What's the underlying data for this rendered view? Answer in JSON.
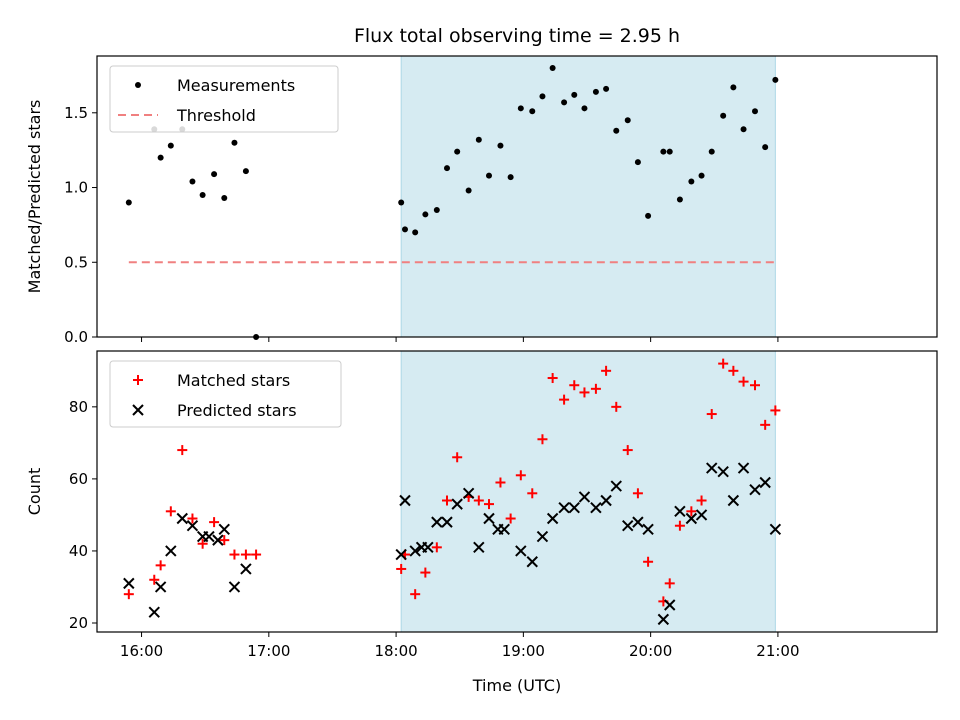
{
  "chart_data": {
    "title": "Flux total observing time = 2.95 h",
    "xlabel": "Time (UTC)",
    "x_ticks": [
      "16:00",
      "17:00",
      "18:00",
      "19:00",
      "20:00",
      "21:00"
    ],
    "x_tick_hours": [
      16,
      17,
      18,
      19,
      20,
      21
    ],
    "xlim": [
      15.65,
      22.25
    ],
    "highlight_span": [
      18.04,
      20.98
    ],
    "colors": {
      "matched": "#ff0000",
      "predicted": "#000000",
      "threshold": "#f08080",
      "span": "#add8e6"
    },
    "panels": [
      {
        "type": "scatter",
        "ylabel": "Matched/Predicted stars",
        "ylim": [
          0,
          1.88
        ],
        "y_ticks": [
          "0.0",
          "0.5",
          "1.0",
          "1.5"
        ],
        "legend_placement": "upper-left",
        "series": [
          {
            "name": "Measurements",
            "x": [
              15.9,
              16.1,
              16.15,
              16.23,
              16.32,
              16.4,
              16.48,
              16.57,
              16.65,
              16.73,
              16.82,
              16.9,
              18.04,
              18.07,
              18.15,
              18.23,
              18.32,
              18.4,
              18.48,
              18.57,
              18.65,
              18.73,
              18.82,
              18.9,
              18.98,
              19.07,
              19.15,
              19.23,
              19.32,
              19.4,
              19.48,
              19.57,
              19.65,
              19.73,
              19.82,
              19.9,
              19.98,
              20.1,
              20.15,
              20.23,
              20.32,
              20.4,
              20.48,
              20.57,
              20.65,
              20.73,
              20.82,
              20.9,
              20.98
            ],
            "y": [
              0.9,
              1.39,
              1.2,
              1.28,
              1.39,
              1.04,
              0.95,
              1.09,
              0.93,
              1.3,
              1.11,
              0.0,
              0.9,
              0.72,
              0.7,
              0.82,
              0.85,
              1.13,
              1.24,
              0.98,
              1.32,
              1.08,
              1.28,
              1.07,
              1.53,
              1.51,
              1.61,
              1.8,
              1.57,
              1.62,
              1.53,
              1.64,
              1.66,
              1.38,
              1.45,
              1.17,
              0.81,
              1.24,
              1.24,
              0.92,
              1.04,
              1.08,
              1.24,
              1.48,
              1.67,
              1.39,
              1.51,
              1.27,
              1.72
            ]
          },
          {
            "name": "Threshold",
            "style": "dashed-line",
            "x": [
              15.9,
              20.98
            ],
            "y": [
              0.5,
              0.5
            ]
          }
        ]
      },
      {
        "type": "scatter",
        "ylabel": "Count",
        "ylim": [
          17.5,
          95.5
        ],
        "y_ticks": [
          "20",
          "40",
          "60",
          "80"
        ],
        "legend_placement": "upper-left",
        "series": [
          {
            "name": "Matched stars",
            "marker": "plus",
            "x": [
              15.9,
              16.1,
              16.15,
              16.23,
              16.32,
              16.4,
              16.48,
              16.57,
              16.65,
              16.73,
              16.82,
              16.9,
              18.04,
              18.07,
              18.15,
              18.23,
              18.32,
              18.4,
              18.48,
              18.57,
              18.65,
              18.73,
              18.82,
              18.9,
              18.98,
              19.07,
              19.15,
              19.23,
              19.32,
              19.4,
              19.48,
              19.57,
              19.65,
              19.73,
              19.82,
              19.9,
              19.98,
              20.1,
              20.15,
              20.23,
              20.32,
              20.4,
              20.48,
              20.57,
              20.65,
              20.73,
              20.82,
              20.9,
              20.98
            ],
            "y": [
              28,
              32,
              36,
              51,
              68,
              49,
              42,
              48,
              43,
              39,
              39,
              39,
              35,
              39,
              28,
              34,
              41,
              54,
              66,
              55,
              54,
              53,
              59,
              49,
              61,
              56,
              71,
              88,
              82,
              86,
              84,
              85,
              90,
              80,
              68,
              56,
              37,
              26,
              31,
              47,
              51,
              54,
              78,
              92,
              90,
              87,
              86,
              75,
              79
            ]
          },
          {
            "name": "Predicted stars",
            "marker": "x",
            "x": [
              15.9,
              16.1,
              16.15,
              16.23,
              16.32,
              16.4,
              16.48,
              16.53,
              16.6,
              16.65,
              16.73,
              16.82,
              18.04,
              18.07,
              18.15,
              18.2,
              18.25,
              18.32,
              18.4,
              18.48,
              18.57,
              18.65,
              18.73,
              18.8,
              18.85,
              18.98,
              19.07,
              19.15,
              19.23,
              19.32,
              19.4,
              19.48,
              19.57,
              19.65,
              19.73,
              19.82,
              19.9,
              19.98,
              20.1,
              20.15,
              20.23,
              20.32,
              20.4,
              20.48,
              20.57,
              20.65,
              20.73,
              20.82,
              20.9,
              20.98
            ],
            "y": [
              31,
              23,
              30,
              40,
              49,
              47,
              44,
              44,
              43,
              46,
              30,
              35,
              39,
              54,
              40,
              41,
              41,
              48,
              48,
              53,
              56,
              41,
              49,
              46,
              46,
              40,
              37,
              44,
              49,
              52,
              52,
              55,
              52,
              54,
              58,
              47,
              48,
              46,
              21,
              25,
              51,
              49,
              50,
              63,
              62,
              54,
              63,
              57,
              59,
              46
            ]
          }
        ]
      }
    ]
  }
}
